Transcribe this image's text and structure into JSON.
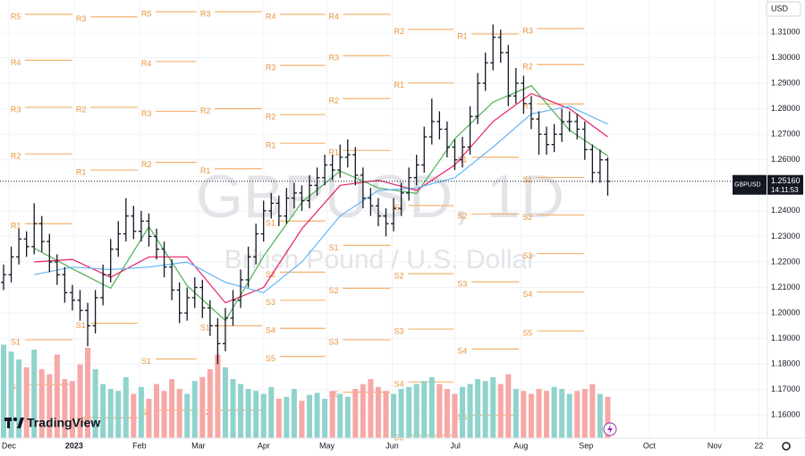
{
  "chart_data": {
    "type": "ohlc",
    "watermark": "GBPUSD, 1D",
    "description": "British Pound / U.S. Dollar",
    "currency": "USD",
    "brand": "TradingView",
    "up_color": "#8fd3cc",
    "down_color": "#f6a8a6",
    "bar_color": "#131722",
    "grid": true,
    "ylim": [
      1.151,
      1.3226
    ],
    "yticks": [
      {
        "value": 1.16,
        "label": "1.16000"
      },
      {
        "value": 1.17,
        "label": "1.17000"
      },
      {
        "value": 1.18,
        "label": "1.18000"
      },
      {
        "value": 1.19,
        "label": "1.19000"
      },
      {
        "value": 1.2,
        "label": "1.20000"
      },
      {
        "value": 1.21,
        "label": "1.21000"
      },
      {
        "value": 1.22,
        "label": "1.22000"
      },
      {
        "value": 1.23,
        "label": "1.23000"
      },
      {
        "value": 1.24,
        "label": "1.24000"
      },
      {
        "value": 1.25,
        "label": "1.25000"
      },
      {
        "value": 1.26,
        "label": "1.26000"
      },
      {
        "value": 1.27,
        "label": "1.27000"
      },
      {
        "value": 1.28,
        "label": "1.28000"
      },
      {
        "value": 1.29,
        "label": "1.29000"
      },
      {
        "value": 1.3,
        "label": "1.30000"
      },
      {
        "value": 1.31,
        "label": "1.31000"
      }
    ],
    "xlim": [
      -4.2,
      360.1
    ],
    "xticks": [
      {
        "value": 0,
        "label": "Dec"
      },
      {
        "value": 31,
        "label": "2023"
      },
      {
        "value": 62,
        "label": "Feb"
      },
      {
        "value": 90,
        "label": "Mar"
      },
      {
        "value": 121,
        "label": "Apr"
      },
      {
        "value": 151,
        "label": "May"
      },
      {
        "value": 182,
        "label": "Jun"
      },
      {
        "value": 212,
        "label": "Jul"
      },
      {
        "value": 243,
        "label": "Aug"
      },
      {
        "value": 274,
        "label": "Sep"
      },
      {
        "value": 304,
        "label": "Oct"
      },
      {
        "value": 335,
        "label": "Nov"
      },
      {
        "value": 356,
        "label": "22"
      }
    ],
    "open": [
      1.212,
      1.215,
      1.222,
      1.229,
      1.226,
      1.235,
      1.228,
      1.22,
      1.215,
      1.208,
      1.205,
      1.201,
      1.195,
      1.206,
      1.215,
      1.225,
      1.231,
      1.238,
      1.232,
      1.236,
      1.23,
      1.225,
      1.218,
      1.209,
      1.2,
      1.206,
      1.21,
      1.202,
      1.195,
      1.188,
      1.198,
      1.205,
      1.213,
      1.222,
      1.231,
      1.24,
      1.243,
      1.238,
      1.245,
      1.247,
      1.244,
      1.25,
      1.253,
      1.258,
      1.256,
      1.261,
      1.262,
      1.254,
      1.245,
      1.242,
      1.238,
      1.235,
      1.241,
      1.247,
      1.253,
      1.258,
      1.269,
      1.275,
      1.272,
      1.265,
      1.26,
      1.265,
      1.277,
      1.29,
      1.298,
      1.308,
      1.302,
      1.285,
      1.29,
      1.282,
      1.276,
      1.27,
      1.266,
      1.27,
      1.275,
      1.275,
      1.272,
      1.264,
      1.255,
      1.26
    ],
    "high": [
      1.219,
      1.226,
      1.233,
      1.232,
      1.243,
      1.238,
      1.231,
      1.223,
      1.218,
      1.211,
      1.209,
      1.204,
      1.209,
      1.219,
      1.229,
      1.236,
      1.245,
      1.242,
      1.24,
      1.239,
      1.233,
      1.228,
      1.221,
      1.212,
      1.21,
      1.214,
      1.213,
      1.205,
      1.198,
      1.202,
      1.209,
      1.217,
      1.226,
      1.235,
      1.244,
      1.247,
      1.246,
      1.249,
      1.251,
      1.25,
      1.254,
      1.257,
      1.262,
      1.262,
      1.266,
      1.268,
      1.265,
      1.257,
      1.249,
      1.245,
      1.241,
      1.245,
      1.251,
      1.257,
      1.262,
      1.273,
      1.284,
      1.279,
      1.275,
      1.268,
      1.269,
      1.281,
      1.294,
      1.302,
      1.313,
      1.311,
      1.305,
      1.296,
      1.293,
      1.285,
      1.279,
      1.273,
      1.274,
      1.28,
      1.279,
      1.278,
      1.275,
      1.266,
      1.264,
      1.261
    ],
    "low": [
      1.209,
      1.212,
      1.219,
      1.222,
      1.223,
      1.224,
      1.216,
      1.211,
      1.204,
      1.201,
      1.197,
      1.187,
      1.192,
      1.203,
      1.212,
      1.222,
      1.228,
      1.229,
      1.228,
      1.226,
      1.221,
      1.214,
      1.205,
      1.196,
      1.197,
      1.202,
      1.198,
      1.191,
      1.18,
      1.185,
      1.195,
      1.202,
      1.21,
      1.219,
      1.228,
      1.237,
      1.234,
      1.235,
      1.241,
      1.24,
      1.241,
      1.246,
      1.25,
      1.252,
      1.253,
      1.257,
      1.25,
      1.241,
      1.238,
      1.234,
      1.23,
      1.232,
      1.238,
      1.244,
      1.25,
      1.255,
      1.266,
      1.268,
      1.261,
      1.256,
      1.257,
      1.262,
      1.274,
      1.287,
      1.295,
      1.298,
      1.281,
      1.282,
      1.278,
      1.272,
      1.262,
      1.262,
      1.263,
      1.267,
      1.271,
      1.268,
      1.26,
      1.251,
      1.251,
      1.246
    ],
    "close": [
      1.215,
      1.222,
      1.229,
      1.226,
      1.235,
      1.228,
      1.22,
      1.215,
      1.208,
      1.205,
      1.201,
      1.195,
      1.206,
      1.215,
      1.225,
      1.231,
      1.238,
      1.232,
      1.236,
      1.23,
      1.225,
      1.218,
      1.209,
      1.2,
      1.206,
      1.21,
      1.202,
      1.195,
      1.188,
      1.198,
      1.205,
      1.213,
      1.222,
      1.231,
      1.24,
      1.243,
      1.238,
      1.245,
      1.247,
      1.244,
      1.25,
      1.253,
      1.258,
      1.256,
      1.261,
      1.262,
      1.254,
      1.245,
      1.242,
      1.238,
      1.235,
      1.241,
      1.247,
      1.253,
      1.258,
      1.269,
      1.275,
      1.272,
      1.265,
      1.26,
      1.265,
      1.277,
      1.29,
      1.298,
      1.308,
      1.302,
      1.285,
      1.29,
      1.282,
      1.276,
      1.27,
      1.266,
      1.27,
      1.275,
      1.275,
      1.272,
      1.264,
      1.255,
      1.26,
      1.2516
    ],
    "volume_lim": [
      0,
      100
    ],
    "volume": [
      95,
      88,
      80,
      72,
      90,
      70,
      65,
      85,
      60,
      58,
      75,
      92,
      70,
      55,
      50,
      48,
      62,
      45,
      52,
      40,
      55,
      48,
      60,
      50,
      45,
      58,
      62,
      70,
      85,
      72,
      60,
      55,
      50,
      48,
      45,
      52,
      40,
      42,
      50,
      38,
      44,
      46,
      40,
      48,
      45,
      42,
      50,
      55,
      60,
      52,
      48,
      45,
      50,
      52,
      55,
      58,
      62,
      55,
      50,
      45,
      52,
      55,
      60,
      58,
      62,
      55,
      65,
      50,
      48,
      45,
      50,
      48,
      52,
      50,
      45,
      48,
      50,
      55,
      45,
      42
    ],
    "moving_averages": [
      {
        "color": "#4caf50",
        "x": [
          4,
          9,
          14,
          19,
          24,
          29,
          34,
          39,
          44,
          49,
          54,
          59,
          64,
          69,
          74,
          79
        ],
        "values": [
          1.2254,
          1.2173,
          1.2097,
          1.2338,
          1.2107,
          1.197,
          1.2222,
          1.2434,
          1.2556,
          1.249,
          1.2468,
          1.2683,
          1.2826,
          1.289,
          1.2716,
          1.2616
        ]
      },
      {
        "color": "#e91e63",
        "x": [
          4,
          9,
          14,
          19,
          24,
          29,
          34,
          39,
          44,
          49,
          54,
          59,
          64,
          69,
          74,
          79
        ],
        "values": [
          1.22,
          1.221,
          1.214,
          1.222,
          1.222,
          1.204,
          1.21,
          1.233,
          1.25,
          1.252,
          1.248,
          1.258,
          1.275,
          1.286,
          1.28,
          1.269
        ]
      },
      {
        "color": "#64b5f6",
        "x": [
          4,
          9,
          14,
          19,
          24,
          29,
          34,
          39,
          44,
          49,
          54,
          59,
          64,
          69,
          74,
          79
        ],
        "values": [
          1.215,
          1.218,
          1.217,
          1.218,
          1.22,
          1.212,
          1.208,
          1.22,
          1.238,
          1.248,
          1.249,
          1.253,
          1.265,
          1.278,
          1.281,
          1.274
        ]
      }
    ],
    "pivots": [
      [
        {
          "label": "R5",
          "value": 1.317
        },
        {
          "label": "R4",
          "value": 1.299
        },
        {
          "label": "R3",
          "value": 1.2806
        },
        {
          "label": "R2",
          "value": 1.2623
        },
        {
          "label": "R1",
          "value": 1.235
        },
        {
          "label": "S1",
          "value": 1.1895
        },
        {
          "label": "S2",
          "value": 1.172
        }
      ],
      [
        {
          "label": "R3",
          "value": 1.316
        },
        {
          "label": "R2",
          "value": 1.2806
        },
        {
          "label": "R1",
          "value": 1.256
        },
        {
          "label": "S1",
          "value": 1.196
        },
        {
          "label": "S2",
          "value": 1.159
        }
      ],
      [
        {
          "label": "R5",
          "value": 1.318
        },
        {
          "label": "R4",
          "value": 1.2985
        },
        {
          "label": "R3",
          "value": 1.279
        },
        {
          "label": "R2",
          "value": 1.259
        },
        {
          "label": "S1",
          "value": 1.182
        },
        {
          "label": "S2",
          "value": 1.162
        }
      ],
      [
        {
          "label": "R3",
          "value": 1.318
        },
        {
          "label": "R2",
          "value": 1.28
        },
        {
          "label": "R1",
          "value": 1.2565
        },
        {
          "label": "S1",
          "value": 1.195
        },
        {
          "label": "S2",
          "value": 1.162
        }
      ],
      [
        {
          "label": "R4",
          "value": 1.317
        },
        {
          "label": "R3",
          "value": 1.297
        },
        {
          "label": "R2",
          "value": 1.2777
        },
        {
          "label": "R1",
          "value": 1.2665
        },
        {
          "label": "S1",
          "value": 1.236
        },
        {
          "label": "S2",
          "value": 1.216
        },
        {
          "label": "S3",
          "value": 1.205
        },
        {
          "label": "S4",
          "value": 1.194
        },
        {
          "label": "S5",
          "value": 1.183
        }
      ],
      [
        {
          "label": "R4",
          "value": 1.317
        },
        {
          "label": "R3",
          "value": 1.3008
        },
        {
          "label": "R2",
          "value": 1.284
        },
        {
          "label": "R1",
          "value": 1.2637
        },
        {
          "label": "S1",
          "value": 1.2265
        },
        {
          "label": "S2",
          "value": 1.2097
        },
        {
          "label": "S3",
          "value": 1.1895
        },
        {
          "label": "S5",
          "value": 1.169
        }
      ],
      [
        {
          "label": "R2",
          "value": 1.3111
        },
        {
          "label": "R1",
          "value": 1.2901
        },
        {
          "label": "S1",
          "value": 1.2421
        },
        {
          "label": "S2",
          "value": 1.2154
        },
        {
          "label": "S3",
          "value": 1.1937
        },
        {
          "label": "S4",
          "value": 1.173
        },
        {
          "label": "S5",
          "value": 1.152
        }
      ],
      [
        {
          "label": "R1",
          "value": 1.3093
        },
        {
          "label": "S1",
          "value": 1.261
        },
        {
          "label": "S2",
          "value": 1.2388
        },
        {
          "label": "S3",
          "value": 1.2122
        },
        {
          "label": "S4",
          "value": 1.1859
        },
        {
          "label": "S5",
          "value": 1.16
        }
      ],
      [
        {
          "label": "R3",
          "value": 1.3114
        },
        {
          "label": "R2",
          "value": 1.2973
        },
        {
          "label": "R1",
          "value": 1.2819
        },
        {
          "label": "S1",
          "value": 1.2531
        },
        {
          "label": "S2",
          "value": 1.2384
        },
        {
          "label": "S3",
          "value": 1.2233
        },
        {
          "label": "S4",
          "value": 1.2082
        },
        {
          "label": "S5",
          "value": 1.193
        }
      ]
    ],
    "last_price": {
      "value": 1.2516,
      "label": "1.25160"
    },
    "countdown": "14:11:53"
  }
}
